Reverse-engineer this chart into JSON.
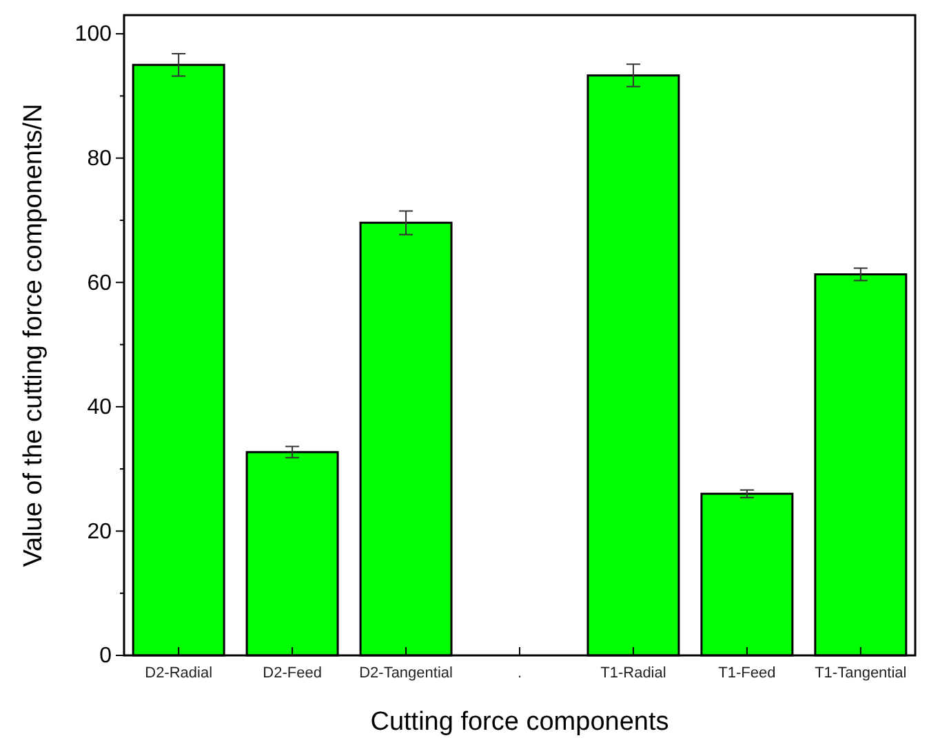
{
  "chart_data": {
    "type": "bar",
    "xlabel": "Cutting force components",
    "ylabel": "Value of the cutting force components/N",
    "categories": [
      "D2-Radial",
      "D2-Feed",
      "D2-Tangential",
      ".",
      "T1-Radial",
      "T1-Feed",
      "T1-Tangential"
    ],
    "values": [
      95,
      32.7,
      69.6,
      null,
      93.3,
      26,
      61.3
    ],
    "errors": [
      1.8,
      0.9,
      1.9,
      null,
      1.8,
      0.6,
      1
    ],
    "color": "#00ff00",
    "ylim": [
      0,
      103
    ],
    "yticks": [
      0,
      {
        "value": 10,
        "label": null
      },
      20,
      {
        "value": 30,
        "label": null
      },
      40,
      {
        "value": 50,
        "label": null
      },
      60,
      {
        "value": 70,
        "label": null
      },
      80,
      {
        "value": 90,
        "label": null
      },
      100
    ],
    "grid": false
  }
}
